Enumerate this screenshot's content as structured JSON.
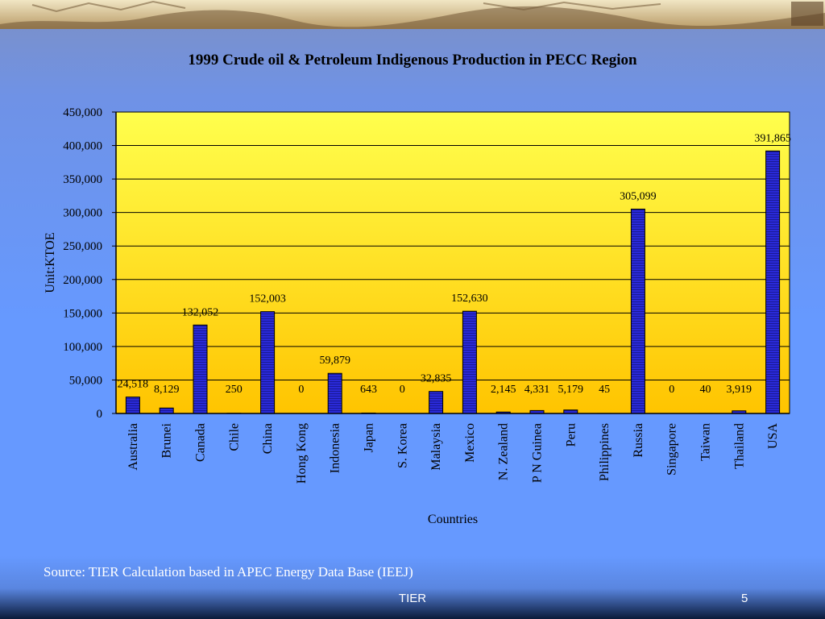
{
  "slide": {
    "source": "Source: TIER Calculation based in APEC Energy Data Base (IEEJ)",
    "footer_center": "TIER",
    "slide_number": "5"
  },
  "colors": {
    "bar": "#2a2ad8",
    "plot_top": "#ffff4d",
    "plot_bottom": "#ffc400"
  },
  "chart_data": {
    "type": "bar",
    "title": "1999 Crude oil & Petroleum Indigenous Production in PECC Region",
    "xlabel": "Countries",
    "ylabel": "Unit:KTOE",
    "ylim": [
      0,
      450000
    ],
    "yticks": [
      "0",
      "50,000",
      "100,000",
      "150,000",
      "200,000",
      "250,000",
      "300,000",
      "350,000",
      "400,000",
      "450,000"
    ],
    "grid": true,
    "categories": [
      "Australia",
      "Brunei",
      "Canada",
      "Chile",
      "China",
      "Hong Kong",
      "Indonesia",
      "Japan",
      "S. Korea",
      "Malaysia",
      "Mexico",
      "N. Zealand",
      "P N Guinea",
      "Peru",
      "Philippines",
      "Russia",
      "Singapore",
      "Taiwan",
      "Thailand",
      "USA"
    ],
    "values": [
      24518,
      8129,
      132052,
      250,
      152003,
      0,
      59879,
      643,
      0,
      32835,
      152630,
      2145,
      4331,
      5179,
      45,
      305099,
      0,
      40,
      3919,
      391865
    ],
    "data_labels": [
      "24,518",
      "8,129",
      "132,052",
      "250",
      "152,003",
      "0",
      "59,879",
      "643",
      "0",
      "32,835",
      "152,630",
      "2,145",
      "4,331",
      "5,179",
      "45",
      "305,099",
      "0",
      "40",
      "3,919",
      "391,865"
    ]
  }
}
